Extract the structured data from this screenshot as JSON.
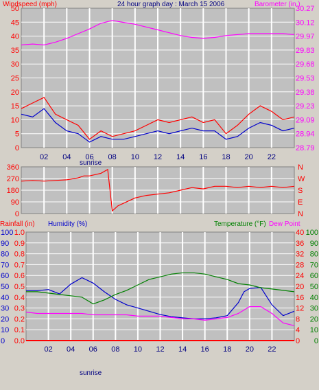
{
  "header": {
    "windspeed_label": "Windspeed (mph)",
    "title": "24 hour graph day : March 15 2006",
    "barometer_label": "Barometer (in.)"
  },
  "lower_header": {
    "rainfall_label": "Rainfall (in)",
    "humidity_label": "Humidity (%)",
    "temperature_label": "Temperature (°F)",
    "dewpoint_label": "Dew Point"
  },
  "sunrise_label": "sunrise",
  "colors": {
    "background": "#d4d0c8",
    "plot_bg": "#c0c0c0",
    "grid": "#ffffff",
    "wind": "#ff0000",
    "gust": "#0000cc",
    "barometer": "#ff00ff",
    "humidity": "#0000cc",
    "temperature": "#008000",
    "dewpoint": "#ff00ff",
    "rain": "#ff0000"
  },
  "chart_data": [
    {
      "type": "line",
      "name": "wind-barometer",
      "x_ticks": [
        "02",
        "04",
        "06",
        "08",
        "10",
        "12",
        "14",
        "16",
        "18",
        "20",
        "22"
      ],
      "x_range_hours": [
        0,
        24
      ],
      "y_left_ticks": [
        "0",
        "5",
        "10",
        "15",
        "20",
        "25",
        "30",
        "35",
        "40",
        "45",
        "50"
      ],
      "y_left_range": [
        0,
        50
      ],
      "y_right_ticks": [
        "28.79",
        "28.94",
        "29.09",
        "29.23",
        "29.38",
        "29.53",
        "29.68",
        "29.83",
        "29.97",
        "30.12",
        "30.27"
      ],
      "y_right_range": [
        28.79,
        30.27
      ],
      "series": [
        {
          "axis": "right",
          "x": [
            0,
            1,
            2,
            3,
            4,
            5,
            6,
            7,
            8,
            9,
            10,
            11,
            12,
            13,
            14,
            15,
            16,
            17,
            18,
            19,
            20,
            21,
            22,
            23,
            24
          ],
          "values": [
            29.88,
            29.89,
            29.88,
            29.91,
            29.95,
            30.0,
            30.05,
            30.11,
            30.14,
            30.12,
            30.1,
            30.07,
            30.04,
            30.01,
            29.98,
            29.96,
            29.95,
            29.96,
            29.98,
            29.99,
            30.0,
            30.0,
            30.0,
            30.0,
            29.99
          ]
        },
        {
          "axis": "left",
          "x": [
            0,
            1,
            2,
            3,
            4,
            5,
            6,
            7,
            8,
            9,
            10,
            11,
            12,
            13,
            14,
            15,
            16,
            17,
            18,
            19,
            20,
            21,
            22,
            23,
            24
          ],
          "values": [
            14,
            16,
            18,
            12,
            10,
            8,
            3,
            6,
            4,
            5,
            6,
            8,
            10,
            9,
            10,
            11,
            9,
            10,
            5,
            8,
            12,
            15,
            13,
            10,
            11
          ]
        },
        {
          "axis": "left",
          "x": [
            0,
            1,
            2,
            3,
            4,
            5,
            6,
            7,
            8,
            9,
            10,
            11,
            12,
            13,
            14,
            15,
            16,
            17,
            18,
            19,
            20,
            21,
            22,
            23,
            24
          ],
          "values": [
            12,
            11,
            14,
            9,
            6,
            5,
            2,
            4,
            3,
            3,
            4,
            5,
            6,
            5,
            6,
            7,
            6,
            6,
            3,
            4,
            7,
            9,
            8,
            6,
            7
          ]
        }
      ]
    },
    {
      "type": "line",
      "name": "wind-direction",
      "x_range_hours": [
        0,
        24
      ],
      "y_left_ticks": [
        "0",
        "90",
        "180",
        "270",
        "360"
      ],
      "y_left_range": [
        0,
        360
      ],
      "y_right_ticks": [
        "N",
        "E",
        "S",
        "W",
        "N"
      ],
      "series": [
        {
          "x": [
            0,
            1,
            2,
            3,
            4,
            5,
            5.5,
            6,
            7,
            7.6,
            8,
            8.5,
            9,
            10,
            11,
            12,
            13,
            14,
            15,
            16,
            17,
            18,
            19,
            20,
            21,
            22,
            23,
            24
          ],
          "values": [
            250,
            255,
            250,
            255,
            260,
            275,
            290,
            290,
            310,
            340,
            20,
            60,
            80,
            120,
            140,
            150,
            160,
            180,
            200,
            190,
            210,
            210,
            200,
            210,
            200,
            210,
            200,
            210
          ]
        }
      ]
    },
    {
      "type": "line",
      "name": "humidity-temperature",
      "x_range_hours": [
        0,
        24
      ],
      "y_left_outer_ticks": [
        "0",
        "10",
        "20",
        "30",
        "40",
        "50",
        "60",
        "70",
        "80",
        "90",
        "100"
      ],
      "y_left_inner_ticks": [
        "0.0",
        "0.1",
        "0.2",
        "0.3",
        "0.4",
        "0.5",
        "0.6",
        "0.7",
        "0.8",
        "0.9",
        "1.0"
      ],
      "y_right_inner_ticks": [
        "0",
        "4",
        "8",
        "12",
        "16",
        "20",
        "24",
        "28",
        "32",
        "36",
        "40"
      ],
      "y_right_outer_ticks": [
        "0",
        "10",
        "20",
        "30",
        "40",
        "50",
        "60",
        "70",
        "80",
        "90",
        "100"
      ],
      "humidity_range": [
        0,
        100
      ],
      "temperature_range": [
        0,
        40
      ],
      "rainfall_range": [
        0,
        1.0
      ],
      "series": [
        {
          "x": [
            0,
            1,
            2,
            3,
            4,
            5,
            6,
            7,
            8,
            9,
            10,
            11,
            12,
            13,
            14,
            15,
            16,
            17,
            18,
            19,
            19.5,
            20,
            21,
            22,
            23,
            24
          ],
          "values": [
            46,
            46,
            47,
            43,
            52,
            58,
            53,
            45,
            38,
            33,
            30,
            27,
            24,
            22,
            21,
            20,
            20,
            21,
            23,
            35,
            45,
            48,
            49,
            33,
            23,
            27
          ]
        },
        {
          "x": [
            0,
            1,
            2,
            3,
            4,
            5,
            6,
            7,
            8,
            9,
            10,
            11,
            12,
            13,
            14,
            15,
            16,
            17,
            18,
            19,
            20,
            21,
            22,
            23,
            24
          ],
          "values": [
            18,
            18,
            17.5,
            17,
            16.5,
            16,
            13.5,
            15,
            17,
            18.5,
            20.5,
            22.5,
            23.5,
            24.5,
            25,
            25,
            24.5,
            23.5,
            22.5,
            21,
            20.5,
            19.5,
            19,
            18.5,
            18
          ]
        },
        {
          "x": [
            0,
            1,
            2,
            3,
            4,
            5,
            6,
            7,
            8,
            9,
            10,
            11,
            12,
            13,
            14,
            15,
            16,
            17,
            18,
            19,
            20,
            21,
            22,
            23,
            24
          ],
          "values": [
            10.5,
            10,
            10,
            10,
            10,
            10,
            9.5,
            9.5,
            9.5,
            9.5,
            9,
            9,
            9,
            8.5,
            8,
            8,
            7.5,
            8,
            8.5,
            10,
            12.5,
            12.5,
            10,
            6.5,
            5.5
          ]
        },
        {
          "x": [
            0,
            24
          ],
          "values": [
            0.0,
            0.0
          ]
        }
      ]
    }
  ]
}
